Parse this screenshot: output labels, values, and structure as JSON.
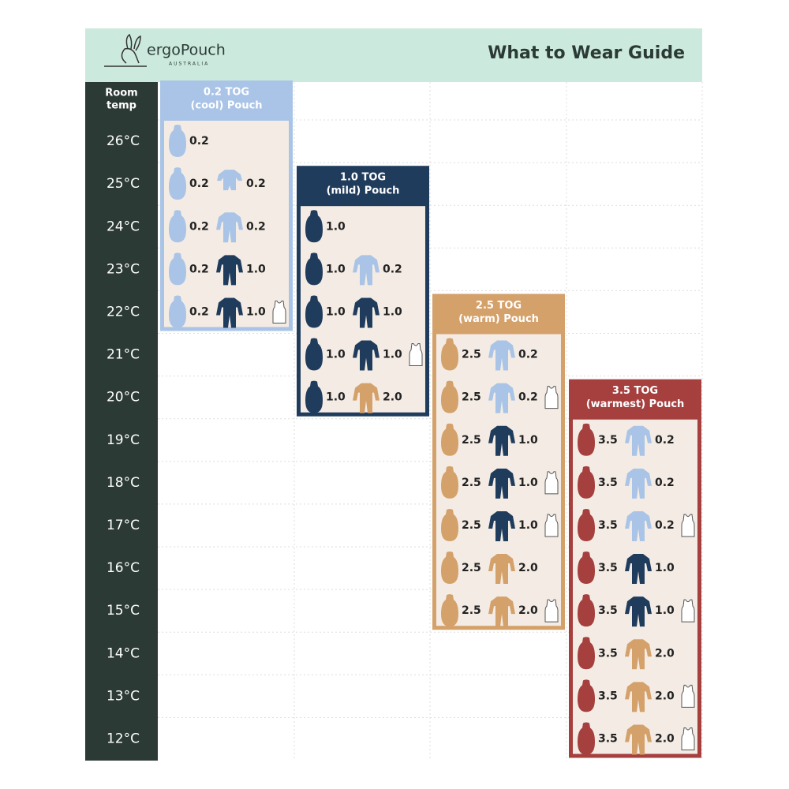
{
  "header": {
    "brand": "ergoPouch",
    "brand_sub": "AUSTRALIA",
    "title": "What to Wear Guide"
  },
  "room_temp_label": [
    "Room",
    "temp"
  ],
  "temps": [
    "26°C",
    "25°C",
    "24°C",
    "23°C",
    "22°C",
    "21°C",
    "20°C",
    "19°C",
    "18°C",
    "17°C",
    "16°C",
    "15°C",
    "14°C",
    "13°C",
    "12°C"
  ],
  "tog_colors": {
    "0.2": "#a9c4e6",
    "1.0": "#203c5d",
    "2.0": "#d4a16b",
    "2.5": "#d4a16b",
    "3.5": "#a5403f"
  },
  "columns": [
    {
      "heading": [
        "0.2 TOG",
        "(cool) Pouch"
      ],
      "color": "#a9c4e6",
      "rows": [
        {
          "pouch": "0.2"
        },
        {
          "pouch": "0.2",
          "suit": "0.2",
          "short_sleeve": true
        },
        {
          "pouch": "0.2",
          "suit": "0.2"
        },
        {
          "pouch": "0.2",
          "suit": "1.0"
        },
        {
          "pouch": "0.2",
          "suit": "1.0",
          "singlet": true
        },
        null,
        null,
        null,
        null,
        null,
        null,
        null,
        null,
        null,
        null
      ]
    },
    {
      "heading": [
        "1.0 TOG",
        "(mild) Pouch"
      ],
      "color": "#203c5d",
      "rows": [
        null,
        null,
        {
          "pouch": "1.0"
        },
        {
          "pouch": "1.0",
          "suit": "0.2"
        },
        {
          "pouch": "1.0",
          "suit": "1.0"
        },
        {
          "pouch": "1.0",
          "suit": "1.0",
          "singlet": true
        },
        {
          "pouch": "1.0",
          "suit": "2.0"
        },
        null,
        null,
        null,
        null,
        null,
        null,
        null,
        null
      ]
    },
    {
      "heading": [
        "2.5 TOG",
        "(warm) Pouch"
      ],
      "color": "#d4a16b",
      "rows": [
        null,
        null,
        null,
        null,
        null,
        {
          "pouch": "2.5",
          "suit": "0.2"
        },
        {
          "pouch": "2.5",
          "suit": "0.2",
          "singlet": true
        },
        {
          "pouch": "2.5",
          "suit": "1.0"
        },
        {
          "pouch": "2.5",
          "suit": "1.0",
          "singlet": true
        },
        {
          "pouch": "2.5",
          "suit": "1.0",
          "singlet": true
        },
        {
          "pouch": "2.5",
          "suit": "2.0"
        },
        {
          "pouch": "2.5",
          "suit": "2.0",
          "singlet": true
        },
        null,
        null,
        null
      ]
    },
    {
      "heading": [
        "3.5 TOG",
        "(warmest) Pouch"
      ],
      "color": "#a5403f",
      "rows": [
        null,
        null,
        null,
        null,
        null,
        null,
        null,
        {
          "pouch": "3.5",
          "suit": "0.2"
        },
        {
          "pouch": "3.5",
          "suit": "0.2"
        },
        {
          "pouch": "3.5",
          "suit": "0.2",
          "singlet": true
        },
        {
          "pouch": "3.5",
          "suit": "1.0"
        },
        {
          "pouch": "3.5",
          "suit": "1.0",
          "singlet": true
        },
        {
          "pouch": "3.5",
          "suit": "2.0"
        },
        {
          "pouch": "3.5",
          "suit": "2.0",
          "singlet": true
        },
        {
          "pouch": "3.5",
          "suit": "2.0",
          "singlet": true
        }
      ]
    }
  ]
}
